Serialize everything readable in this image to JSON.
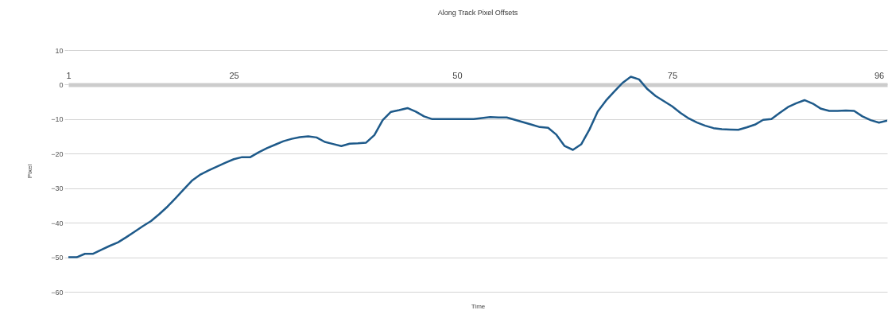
{
  "chart_data": {
    "type": "line",
    "title": "Along Track Pixel Offsets",
    "xlabel": "Time",
    "ylabel": "Pixel",
    "categories": [
      "1",
      null,
      null,
      null,
      null,
      null,
      null,
      null,
      null,
      null,
      null,
      null,
      null,
      null,
      null,
      null,
      null,
      null,
      null,
      null,
      "25",
      null,
      null,
      null,
      null,
      null,
      null,
      null,
      null,
      null,
      null,
      null,
      null,
      null,
      null,
      null,
      null,
      null,
      null,
      null,
      null,
      null,
      null,
      null,
      null,
      null,
      null,
      "50",
      null,
      null,
      null,
      null,
      null,
      null,
      null,
      null,
      null,
      null,
      null,
      null,
      null,
      null,
      null,
      null,
      null,
      null,
      null,
      null,
      null,
      null,
      null,
      null,
      null,
      "75",
      null,
      null,
      null,
      null,
      null,
      null,
      null,
      null,
      null,
      null,
      null,
      null,
      null,
      null,
      null,
      null,
      null,
      null,
      null,
      null,
      null,
      null,
      null,
      null,
      "96",
      null
    ],
    "series": [
      {
        "color": "#1e5a8a",
        "values": [
          -50,
          -50,
          -49,
          -49,
          -47.8,
          -46.7,
          -45.7,
          -44.2,
          -42.6,
          -41,
          -39.5,
          -37.5,
          -35.3,
          -32.8,
          -30.2,
          -27.7,
          -26,
          -24.8,
          -23.7,
          -22.6,
          -21.6,
          -21,
          -21,
          -19.6,
          -18.4,
          -17.4,
          -16.4,
          -15.7,
          -15.2,
          -15,
          -15.3,
          -16.6,
          -17.2,
          -17.8,
          -17.1,
          -17,
          -16.8,
          -14.6,
          -10.3,
          -7.9,
          -7.4,
          -6.8,
          -7.8,
          -9.2,
          -10,
          -10,
          -10,
          -10,
          -10,
          -10,
          -9.7,
          -9.4,
          -9.5,
          -9.5,
          -10.2,
          -10.9,
          -11.6,
          -12.3,
          -12.5,
          -14.5,
          -17.8,
          -18.9,
          -17.3,
          -13,
          -7.8,
          -4.6,
          -2,
          0.5,
          2.3,
          1.5,
          -1.3,
          -3.3,
          -4.8,
          -6.3,
          -8.2,
          -9.8,
          -11,
          -11.9,
          -12.6,
          -12.9,
          -13,
          -13.1,
          -12.4,
          -11.6,
          -10.2,
          -10,
          -8.2,
          -6.5,
          -5.4,
          -4.5,
          -5.5,
          -7,
          -7.6,
          -7.6,
          -7.5,
          -7.6,
          -9.2,
          -10.3,
          -11,
          -10.4
        ]
      }
    ],
    "ylim": [
      -60,
      10
    ],
    "yticks": [
      -60,
      -50,
      -40,
      -30,
      -20,
      -10,
      0,
      10
    ],
    "grid": "y"
  }
}
